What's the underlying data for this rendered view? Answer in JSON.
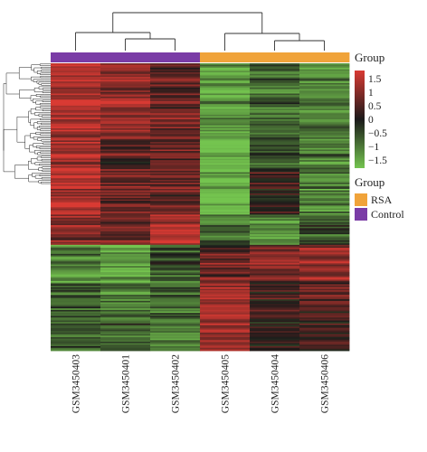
{
  "chart_data": {
    "type": "heatmap",
    "samples": [
      "GSM3450403",
      "GSM3450401",
      "GSM3450402",
      "GSM3450405",
      "GSM3450404",
      "GSM3450406"
    ],
    "sample_groups": [
      "Control",
      "Control",
      "Control",
      "RSA",
      "RSA",
      "RSA"
    ],
    "group_bar_label": "Group",
    "color_scale": {
      "ticks": [
        1.5,
        1,
        0.5,
        0,
        -0.5,
        -1,
        -1.5
      ],
      "tick_labels": [
        "1.5",
        "1",
        "0.5",
        "0",
        "−0.5",
        "−1",
        "−1.5"
      ],
      "range": [
        -1.8,
        1.8
      ],
      "colors": {
        "high": "#d93a33",
        "mid": "#1b1a1a",
        "low": "#74c44f"
      }
    },
    "group_legend": {
      "title": "Group",
      "items": [
        {
          "label": "RSA",
          "color": "#f0a33a"
        },
        {
          "label": "Control",
          "color": "#7a3ca6"
        }
      ]
    },
    "row_blocks": [
      {
        "rows": 50,
        "values": [
          1.5,
          1.2,
          0.8,
          -1.3,
          -0.7,
          -1.0
        ]
      },
      {
        "rows": 20,
        "values": [
          1.4,
          0.6,
          0.9,
          -1.6,
          -0.4,
          -0.9
        ]
      },
      {
        "rows": 30,
        "values": [
          1.5,
          0.8,
          0.7,
          -1.6,
          0.2,
          -1.1
        ]
      },
      {
        "rows": 20,
        "values": [
          0.9,
          0.7,
          1.3,
          -0.9,
          -1.2,
          -0.6
        ]
      },
      {
        "rows": 25,
        "values": [
          -1.1,
          -1.4,
          -0.6,
          0.7,
          0.9,
          1.1
        ]
      },
      {
        "rows": 25,
        "values": [
          -0.8,
          -0.9,
          -0.8,
          1.3,
          0.4,
          0.6
        ]
      },
      {
        "rows": 20,
        "values": [
          -0.6,
          -0.7,
          -1.0,
          1.2,
          0.3,
          0.5
        ]
      }
    ]
  }
}
